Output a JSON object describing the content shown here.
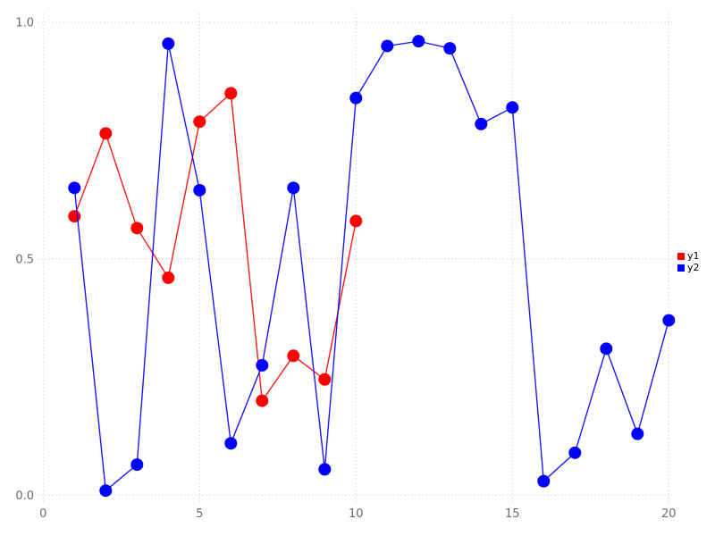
{
  "chart_data": {
    "type": "line",
    "title": "",
    "xlabel": "",
    "ylabel": "",
    "xlim": [
      0,
      20
    ],
    "ylim": [
      0.0,
      1.0
    ],
    "grid": "dotted",
    "legend_position": "right-middle",
    "x_ticks": [
      {
        "value": 0,
        "label": "0"
      },
      {
        "value": 5,
        "label": "5"
      },
      {
        "value": 10,
        "label": "10"
      },
      {
        "value": 15,
        "label": "15"
      },
      {
        "value": 20,
        "label": "20"
      }
    ],
    "y_ticks": [
      {
        "value": 0.0,
        "label": "0.0"
      },
      {
        "value": 0.5,
        "label": "0.5"
      },
      {
        "value": 1.0,
        "label": "1.0"
      }
    ],
    "series": [
      {
        "name": "y1",
        "color": "#ff0000",
        "marker": "circle",
        "x": [
          1,
          2,
          3,
          4,
          5,
          6,
          7,
          8,
          9,
          10
        ],
        "y": [
          0.59,
          0.765,
          0.565,
          0.46,
          0.79,
          0.85,
          0.2,
          0.295,
          0.245,
          0.58
        ]
      },
      {
        "name": "y2",
        "color": "#0000ff",
        "marker": "circle",
        "x": [
          1,
          2,
          3,
          4,
          5,
          6,
          7,
          8,
          9,
          10,
          11,
          12,
          13,
          14,
          15,
          16,
          17,
          18,
          19,
          20
        ],
        "y": [
          0.65,
          0.01,
          0.065,
          0.955,
          0.645,
          0.11,
          0.275,
          0.65,
          0.055,
          0.84,
          0.95,
          0.96,
          0.945,
          0.785,
          0.82,
          0.03,
          0.09,
          0.31,
          0.13,
          0.37
        ]
      }
    ],
    "legend": [
      {
        "label": "y1",
        "color": "#ff0000"
      },
      {
        "label": "y2",
        "color": "#0000ff"
      }
    ]
  },
  "style": {
    "background_color": "#ffffff",
    "grid_color": "#d4d4e4",
    "tick_label_color": "#6a6a78",
    "legend_text_color": "#000000",
    "series_colors": {
      "y1": "#ff0000",
      "y2": "#0000ff"
    }
  }
}
